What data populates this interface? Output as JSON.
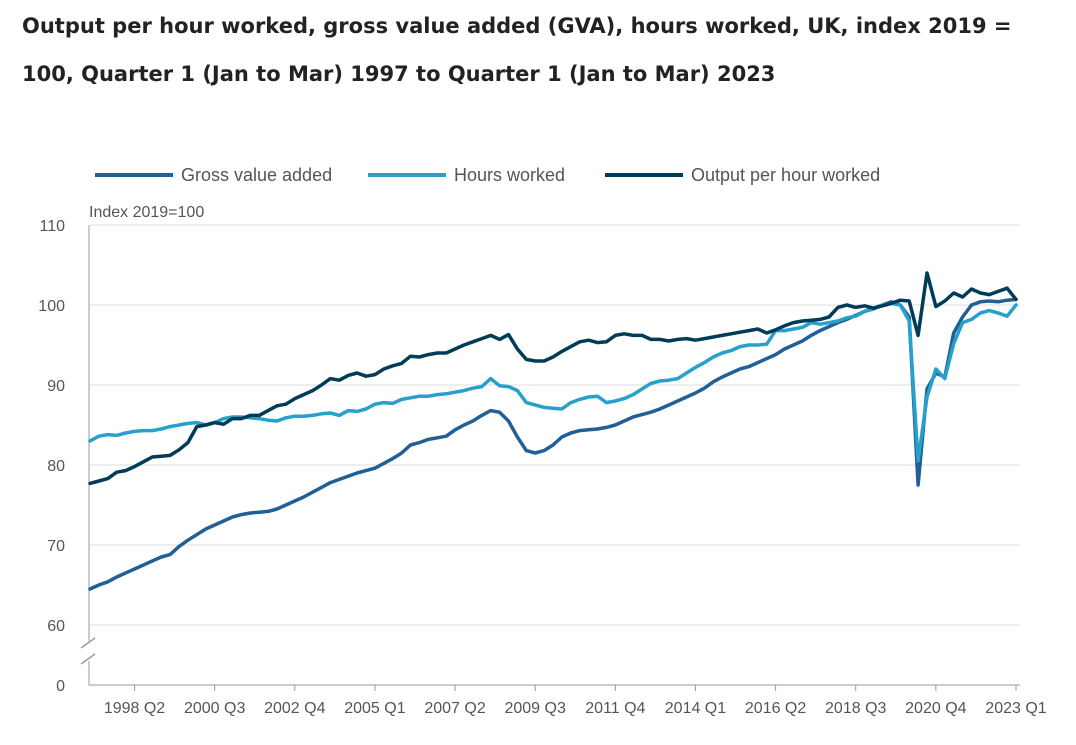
{
  "chart_title": "Output per hour worked, gross value added (GVA), hours worked, UK, index 2019 = 100, Quarter 1 (Jan to Mar) 1997 to Quarter 1 (Jan to Mar) 2023",
  "chart_data": {
    "type": "line",
    "title": "Output per hour worked, gross value added (GVA), hours worked, UK, index 2019 = 100, Quarter 1 (Jan to Mar) 1997 to Quarter 1 (Jan to Mar) 2023",
    "ylabel": "Index 2019=100",
    "xlabel": "",
    "ylim": [
      0,
      110
    ],
    "axis_break": "between 0 and 60",
    "yticks": [
      0,
      60,
      70,
      80,
      90,
      100,
      110
    ],
    "xticks": [
      "1998 Q2",
      "2000 Q3",
      "2002 Q4",
      "2005 Q1",
      "2007 Q2",
      "2009 Q3",
      "2011 Q4",
      "2014 Q1",
      "2016 Q2",
      "2018 Q3",
      "2020 Q4",
      "2023 Q1"
    ],
    "x_start": "1997 Q1",
    "x_end": "2023 Q1",
    "grid": true,
    "legend_position": "top",
    "series": [
      {
        "name": "Gross value added",
        "color": "#206095",
        "values": [
          64.5,
          65.0,
          65.4,
          66.0,
          66.5,
          67.0,
          67.5,
          68.0,
          68.5,
          68.8,
          69.8,
          70.6,
          71.3,
          72.0,
          72.5,
          73.0,
          73.5,
          73.8,
          74.0,
          74.1,
          74.2,
          74.5,
          75.0,
          75.5,
          76.0,
          76.6,
          77.2,
          77.8,
          78.2,
          78.6,
          79.0,
          79.3,
          79.6,
          80.2,
          80.8,
          81.5,
          82.5,
          82.8,
          83.2,
          83.4,
          83.6,
          84.4,
          85.0,
          85.5,
          86.2,
          86.8,
          86.6,
          85.5,
          83.5,
          81.8,
          81.5,
          81.8,
          82.5,
          83.5,
          84.0,
          84.3,
          84.4,
          84.5,
          84.7,
          85.0,
          85.5,
          86.0,
          86.3,
          86.6,
          87.0,
          87.5,
          88.0,
          88.5,
          89.0,
          89.6,
          90.4,
          91.0,
          91.5,
          92.0,
          92.3,
          92.8,
          93.3,
          93.8,
          94.5,
          95.0,
          95.5,
          96.2,
          96.8,
          97.3,
          97.8,
          98.2,
          98.7,
          99.2,
          99.6,
          100.0,
          100.4,
          100.0,
          98.5,
          77.5,
          89.5,
          91.5,
          91.0,
          96.5,
          98.5,
          100.0,
          100.4,
          100.5,
          100.4,
          100.6,
          100.7
        ]
      },
      {
        "name": "Hours worked",
        "color": "#27a0cc",
        "values": [
          83.0,
          83.6,
          83.8,
          83.7,
          84.0,
          84.2,
          84.3,
          84.3,
          84.5,
          84.8,
          85.0,
          85.2,
          85.3,
          85.0,
          85.3,
          85.8,
          86.0,
          86.0,
          85.9,
          85.8,
          85.6,
          85.5,
          85.9,
          86.1,
          86.1,
          86.2,
          86.4,
          86.5,
          86.2,
          86.8,
          86.7,
          87.0,
          87.6,
          87.8,
          87.7,
          88.2,
          88.4,
          88.6,
          88.6,
          88.8,
          88.9,
          89.1,
          89.3,
          89.6,
          89.8,
          90.8,
          89.9,
          89.8,
          89.3,
          87.8,
          87.5,
          87.2,
          87.1,
          87.0,
          87.8,
          88.2,
          88.5,
          88.6,
          87.8,
          88.0,
          88.3,
          88.8,
          89.5,
          90.2,
          90.5,
          90.6,
          90.8,
          91.5,
          92.2,
          92.8,
          93.5,
          94.0,
          94.3,
          94.8,
          95.0,
          95.0,
          95.1,
          96.8,
          96.8,
          97.0,
          97.2,
          97.8,
          97.6,
          97.8,
          98.0,
          98.4,
          98.6,
          99.2,
          99.5,
          100.0,
          100.2,
          100.0,
          98.0,
          80.5,
          88.5,
          92.0,
          90.8,
          95.2,
          97.8,
          98.2,
          99.0,
          99.3,
          99.0,
          98.6,
          100.0
        ]
      },
      {
        "name": "Output per hour worked",
        "color": "#003c57",
        "values": [
          77.7,
          78.0,
          78.3,
          79.1,
          79.3,
          79.8,
          80.4,
          81.0,
          81.1,
          81.2,
          81.9,
          82.8,
          84.8,
          85.0,
          85.3,
          85.1,
          85.8,
          85.8,
          86.2,
          86.2,
          86.8,
          87.4,
          87.6,
          88.3,
          88.8,
          89.3,
          90.0,
          90.8,
          90.6,
          91.2,
          91.5,
          91.1,
          91.3,
          92.0,
          92.4,
          92.7,
          93.6,
          93.5,
          93.8,
          94.0,
          94.0,
          94.5,
          95.0,
          95.4,
          95.8,
          96.2,
          95.7,
          96.3,
          94.5,
          93.2,
          93.0,
          93.0,
          93.5,
          94.2,
          94.8,
          95.4,
          95.6,
          95.3,
          95.4,
          96.2,
          96.4,
          96.2,
          96.2,
          95.7,
          95.7,
          95.5,
          95.7,
          95.8,
          95.6,
          95.8,
          96.0,
          96.2,
          96.4,
          96.6,
          96.8,
          97.0,
          96.5,
          96.9,
          97.4,
          97.8,
          98.0,
          98.1,
          98.2,
          98.5,
          99.7,
          100.0,
          99.7,
          99.9,
          99.6,
          99.9,
          100.2,
          100.6,
          100.5,
          96.2,
          104.0,
          99.8,
          100.5,
          101.5,
          101.0,
          102.0,
          101.5,
          101.3,
          101.7,
          102.1,
          100.7
        ]
      }
    ]
  }
}
